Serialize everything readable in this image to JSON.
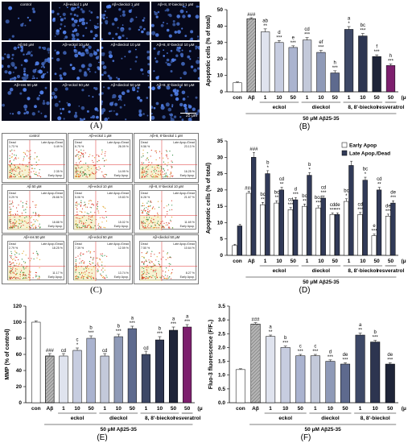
{
  "panels": {
    "A": {
      "letter": "(A)",
      "cells": [
        "control",
        "Aβ+eckol 1 μM",
        "Aβ+dieckol 1 μM",
        "Aβ+8, 8'-bieckol 1 μM",
        "Aβ 50 μM",
        "Aβ+eckol 10 μM",
        "Aβ+dieckol 10 μM",
        "Aβ+8, 8'-bieckol 10 μM",
        "Aβ+res 50 μM",
        "Aβ+eckol 50 μM",
        "Aβ+dieckol 50 μM",
        "Aβ+8, 8'-bieckol 50 μM"
      ],
      "scale_label": "25 μm"
    },
    "C": {
      "letter": "(C)",
      "cells": [
        {
          "label": "control",
          "q": [
            "1.73 %",
            "0.49 %",
            "2.35 %"
          ]
        },
        {
          "label": "Aβ+eckol 1 μM",
          "q": [
            "6.75 %",
            "26.09 %",
            "14.99 %"
          ]
        },
        {
          "label": "Aβ+8, 8'-bieckol 1 μM",
          "q": [
            "9.56 %",
            "23.13 %",
            "16.25 %"
          ]
        },
        {
          "label": "Aβ 50 μM",
          "q": [
            "3.29 %",
            "26.66 %",
            "18.88 %"
          ]
        },
        {
          "label": "Aβ+eckol 10 μM",
          "q": [
            "5.06 %",
            "19.83 %",
            "15.02 %"
          ]
        },
        {
          "label": "Aβ+8, 8'-bieckol 10 μM",
          "q": [
            "6.28 %",
            "21.67 %",
            "11.69 %"
          ]
        },
        {
          "label": "Aβ+res 50 μM",
          "q": [
            "2.79 %",
            "18.25 %",
            "11.17 %"
          ]
        },
        {
          "label": "Aβ+eckol 50 μM",
          "q": [
            "7.39 %",
            "12.59 %",
            "13.74 %"
          ]
        },
        {
          "label": "Aβ+dieckol 50 μM",
          "q": [
            "7.50 %",
            "10.64 %",
            "8.27 %"
          ]
        }
      ],
      "quadrant_names": [
        "Dead",
        "Late Apop./Dead",
        "Early Apop."
      ]
    }
  },
  "chart_data": [
    {
      "panel": "B",
      "letter": "(B)",
      "type": "bar",
      "ylabel": "Apoptotic cells (% of total)",
      "ylim": [
        0,
        50
      ],
      "yticks": [
        0,
        10,
        20,
        30,
        40,
        50
      ],
      "categories": [
        "con",
        "Aβ",
        "1",
        "10",
        "50",
        "1",
        "10",
        "50",
        "1",
        "10",
        "50",
        "50"
      ],
      "values": [
        5.5,
        44.5,
        36.5,
        30,
        27,
        31.5,
        24,
        11.5,
        38,
        34,
        21.5,
        16
      ],
      "errors": [
        0.5,
        0.6,
        1.8,
        1.2,
        1.0,
        1.5,
        1.2,
        1.3,
        1.7,
        1.5,
        1.0,
        1.0
      ],
      "sig_labels": [
        "",
        "###",
        "ab\n**",
        "d\n***",
        "e\n***",
        "cd\n***",
        "ef\n***",
        "h\n***",
        "a\n*",
        "bc\n***",
        "f\n***",
        "h\n***"
      ],
      "colors": [
        "#ffffff",
        "#b5b5b5",
        "#dfe3ee",
        "#c7cde0",
        "#aab3cf",
        "#c3c9da",
        "#8f9ab7",
        "#5e6a8e",
        "#3d4866",
        "#2d3550",
        "#1e2438",
        "#7d1f6e"
      ],
      "group_labels": [
        "eckol",
        "dieckol",
        "8, 8'-bieckol",
        "resveratrol"
      ],
      "unit_label": "(μM)",
      "treatment_label": "50 μM Aβ25-35"
    },
    {
      "panel": "D",
      "letter": "(D)",
      "type": "bar",
      "ylabel": "Apoptotic cells (% of total)",
      "ylim": [
        0,
        35
      ],
      "yticks": [
        0,
        5,
        10,
        15,
        20,
        25,
        30,
        35
      ],
      "categories": [
        "con",
        "Aβ",
        "1",
        "10",
        "50",
        "1",
        "10",
        "50",
        "1",
        "10",
        "50",
        "50"
      ],
      "series": [
        {
          "name": "Early Apop",
          "values": [
            3,
            19,
            15.5,
            16,
            14,
            15,
            14.5,
            12.5,
            16.5,
            12.5,
            6,
            12
          ],
          "errors": [
            0.4,
            0.6,
            0.7,
            0.7,
            0.6,
            0.7,
            0.6,
            0.5,
            0.8,
            0.6,
            0.5,
            0.6
          ],
          "sig_labels": [
            "",
            "###",
            "bc\n**",
            "bc\n**",
            "cd\n***",
            "bc\n**",
            "bcd\n***",
            "cd\n***",
            "bc\n*",
            "cd\n***",
            "e\n***",
            "de\n***"
          ]
        },
        {
          "name": "Late Apop./Dead",
          "values": [
            9,
            30,
            25,
            20,
            17,
            24.5,
            17.5,
            12.5,
            27.5,
            23,
            20,
            16
          ],
          "errors": [
            0.5,
            1.5,
            0.9,
            0.8,
            0.7,
            0.8,
            0.7,
            0.5,
            1.3,
            0.9,
            0.8,
            0.7
          ],
          "sig_labels": [
            "",
            "###",
            "b\n*",
            "cd\n**",
            "d\n***",
            "b\n*",
            "cd\n***",
            "de\n***",
            "",
            "bc\n*",
            "cd\n**",
            "de\n***"
          ]
        }
      ],
      "colors": [
        "#ffffff",
        "#313a58"
      ],
      "legend_position": "top-right",
      "group_labels": [
        "eckol",
        "dieckol",
        "8, 8'-bieckol",
        "resveratrol"
      ],
      "unit_label": "(μM)",
      "treatment_label": "50 μM Aβ25-35"
    },
    {
      "panel": "E",
      "letter": "(E)",
      "type": "bar",
      "ylabel": "MMP (% of control)",
      "ylim": [
        0,
        120
      ],
      "yticks": [
        0,
        20,
        40,
        60,
        80,
        100,
        120
      ],
      "categories": [
        "con",
        "Aβ",
        "1",
        "10",
        "50",
        "1",
        "10",
        "50",
        "1",
        "10",
        "50",
        "50"
      ],
      "values": [
        100,
        58,
        58,
        65,
        80,
        58,
        82,
        92,
        60,
        78,
        90,
        94
      ],
      "errors": [
        1.5,
        3,
        3,
        3,
        3,
        3,
        3,
        3,
        4,
        4,
        4,
        3
      ],
      "sig_labels": [
        "",
        "###",
        "cd",
        "c\n*",
        "b\n***",
        "cd",
        "b\n***",
        "a\n***",
        "cd",
        "b\n***",
        "a\n***",
        "a\n***"
      ],
      "colors": [
        "#ffffff",
        "#b5b5b5",
        "#dfe3ee",
        "#c7cde0",
        "#aab3cf",
        "#c3c9da",
        "#8f9ab7",
        "#5e6a8e",
        "#3d4866",
        "#2d3550",
        "#1e2438",
        "#7d1f6e"
      ],
      "group_labels": [
        "eckol",
        "dieckol",
        "8, 8'-bieckol",
        "resveratrol"
      ],
      "unit_label": "(μM)",
      "treatment_label": "50 μM Aβ25-35"
    },
    {
      "panel": "F",
      "letter": "(F)",
      "type": "bar",
      "ylabel": "Fluo-3 fluorescence (F/F₀)",
      "ylim": [
        0,
        3.5
      ],
      "yticks": [
        0,
        0.5,
        1.0,
        1.5,
        2.0,
        2.5,
        3.0,
        3.5
      ],
      "categories": [
        "con",
        "Aβ",
        "1",
        "10",
        "50",
        "1",
        "10",
        "50",
        "1",
        "10",
        "50"
      ],
      "values": [
        1.2,
        2.85,
        2.4,
        2.0,
        1.7,
        1.7,
        1.5,
        1.4,
        2.45,
        2.2,
        1.4
      ],
      "errors": [
        0.03,
        0.05,
        0.05,
        0.05,
        0.05,
        0.05,
        0.05,
        0.05,
        0.07,
        0.06,
        0.05
      ],
      "sig_labels": [
        "",
        "###",
        "a\n**",
        "b\n***",
        "c\n***",
        "c\n***",
        "d\n***",
        "de\n***",
        "a\n**",
        "b\n***",
        "de\n***"
      ],
      "colors": [
        "#ffffff",
        "#b5b5b5",
        "#dfe3ee",
        "#c7cde0",
        "#aab3cf",
        "#c3c9da",
        "#8f9ab7",
        "#5e6a8e",
        "#3d4866",
        "#2d3550",
        "#1e2438"
      ],
      "group_labels": [
        "eckol",
        "dieckol",
        "8, 8'-bieckol"
      ],
      "unit_label": "(μM)",
      "treatment_label": "50 μM Aβ25-35"
    }
  ]
}
